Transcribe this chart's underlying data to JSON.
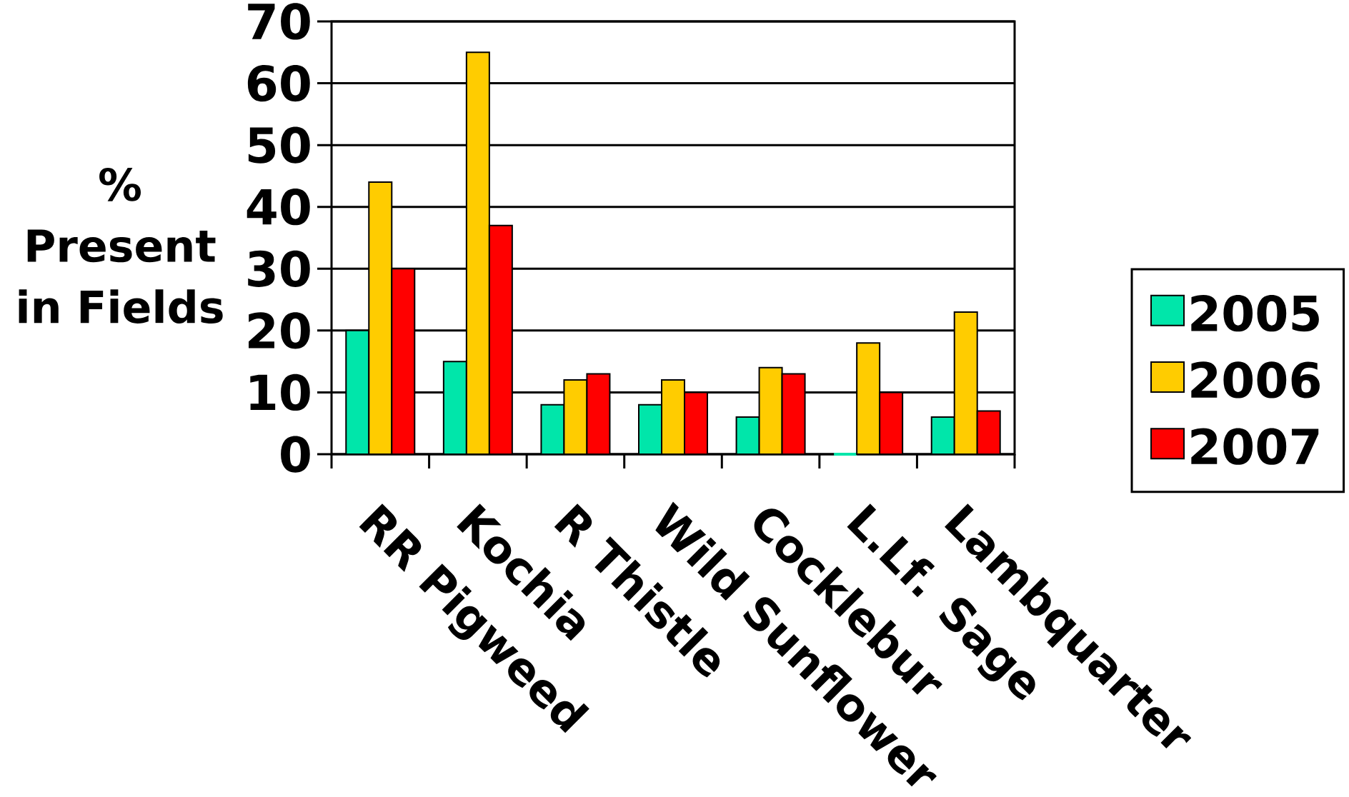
{
  "chart_data": {
    "type": "bar",
    "ylabel": "% Present in Fields",
    "categories": [
      "RR Pigweed",
      "Kochia",
      "R Thistle",
      "Wild Sunflower",
      "Cocklebur",
      "L.Lf. Sage",
      "Lambquarter"
    ],
    "series": [
      {
        "name": "2005",
        "color": "#00e6aa",
        "values": [
          20,
          15,
          8,
          8,
          6,
          0,
          6
        ]
      },
      {
        "name": "2006",
        "color": "#ffcc00",
        "values": [
          44,
          65,
          12,
          12,
          14,
          18,
          23
        ]
      },
      {
        "name": "2007",
        "color": "#ff0000",
        "values": [
          30,
          37,
          13,
          10,
          13,
          10,
          7
        ]
      }
    ],
    "ylim": [
      0,
      70
    ],
    "yticks": [
      0,
      10,
      20,
      30,
      40,
      50,
      60,
      70
    ],
    "grid": "y",
    "legend": "right"
  }
}
